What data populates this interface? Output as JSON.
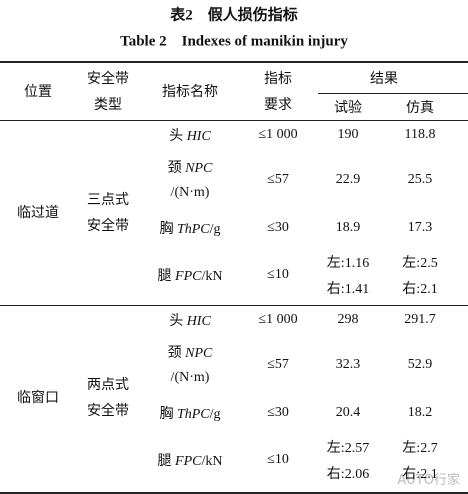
{
  "header": {
    "title_cn": "表2　假人损伤指标",
    "title_en": "Table 2　Indexes of manikin injury"
  },
  "table": {
    "columns": {
      "position": "位置",
      "belt_type": [
        "安全带",
        "类型"
      ],
      "indicator": "指标名称",
      "requirement": [
        "指标",
        "要求"
      ],
      "results": "结果",
      "test": "试验",
      "simulation": "仿真"
    },
    "groups": [
      {
        "position": "临过道",
        "belt_type": [
          "三点式",
          "安全带"
        ],
        "rows": [
          {
            "part": "头",
            "metric": "HIC",
            "requirement": "≤1 000",
            "test": [
              "190"
            ],
            "simulation": [
              "118.8"
            ]
          },
          {
            "part": "颈",
            "metric": "NPC",
            "unit": "/(N·m)",
            "requirement": "≤57",
            "test": [
              "22.9"
            ],
            "simulation": [
              "25.5"
            ]
          },
          {
            "part": "胸",
            "metric": "ThPC",
            "unit": "/g",
            "requirement": "≤30",
            "test": [
              "18.9"
            ],
            "simulation": [
              "17.3"
            ]
          },
          {
            "part": "腿",
            "metric": "FPC",
            "unit": "/kN",
            "requirement": "≤10",
            "test": [
              "左:1.16",
              "右:1.41"
            ],
            "simulation": [
              "左:2.5",
              "右:2.1"
            ]
          }
        ]
      },
      {
        "position": "临窗口",
        "belt_type": [
          "两点式",
          "安全带"
        ],
        "rows": [
          {
            "part": "头",
            "metric": "HIC",
            "requirement": "≤1 000",
            "test": [
              "298"
            ],
            "simulation": [
              "291.7"
            ]
          },
          {
            "part": "颈",
            "metric": "NPC",
            "unit": "/(N·m)",
            "requirement": "≤57",
            "test": [
              "32.3"
            ],
            "simulation": [
              "52.9"
            ]
          },
          {
            "part": "胸",
            "metric": "ThPC",
            "unit": "/g",
            "requirement": "≤30",
            "test": [
              "20.4"
            ],
            "simulation": [
              "18.2"
            ]
          },
          {
            "part": "腿",
            "metric": "FPC",
            "unit": "/kN",
            "requirement": "≤10",
            "test": [
              "左:2.57",
              "右:2.06"
            ],
            "simulation": [
              "左:2.7",
              "右:2.1"
            ]
          }
        ]
      }
    ]
  },
  "watermark": "AUTO行家"
}
